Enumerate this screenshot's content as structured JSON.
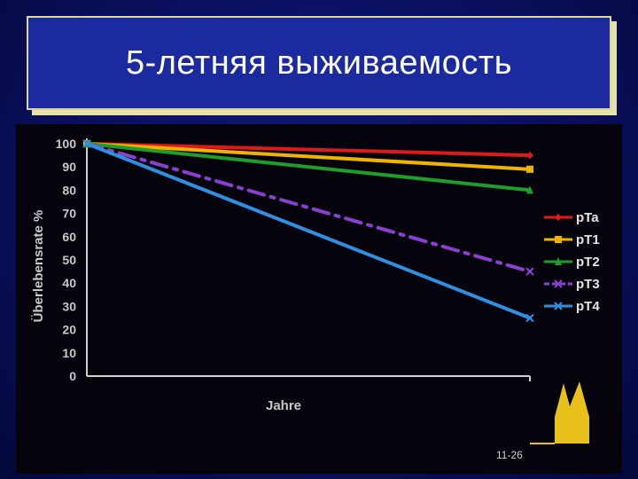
{
  "slide": {
    "title": "5-летняя выживаемость",
    "number": "11-26"
  },
  "chart_data": {
    "type": "line",
    "title": "",
    "xlabel": "Jahre",
    "ylabel": "Überlebensrate %",
    "x": [
      0,
      5
    ],
    "ylim": [
      0,
      100
    ],
    "yticks": [
      0,
      10,
      20,
      30,
      40,
      50,
      60,
      70,
      80,
      90,
      100
    ],
    "legend_position": "right",
    "grid": false,
    "series": [
      {
        "name": "pTa",
        "values": [
          100,
          95
        ],
        "color": "#e01a1a",
        "marker": "diamond",
        "dash": "solid"
      },
      {
        "name": "pT1",
        "values": [
          100,
          89
        ],
        "color": "#f0b400",
        "marker": "square",
        "dash": "solid"
      },
      {
        "name": "pT2",
        "values": [
          100,
          80
        ],
        "color": "#1e9e2a",
        "marker": "triangle",
        "dash": "solid"
      },
      {
        "name": "pT3",
        "values": [
          100,
          45
        ],
        "color": "#8a3fd0",
        "marker": "x",
        "dash": "dashdot"
      },
      {
        "name": "pT4",
        "values": [
          100,
          25
        ],
        "color": "#2f8fe0",
        "marker": "x",
        "dash": "solid"
      }
    ]
  }
}
